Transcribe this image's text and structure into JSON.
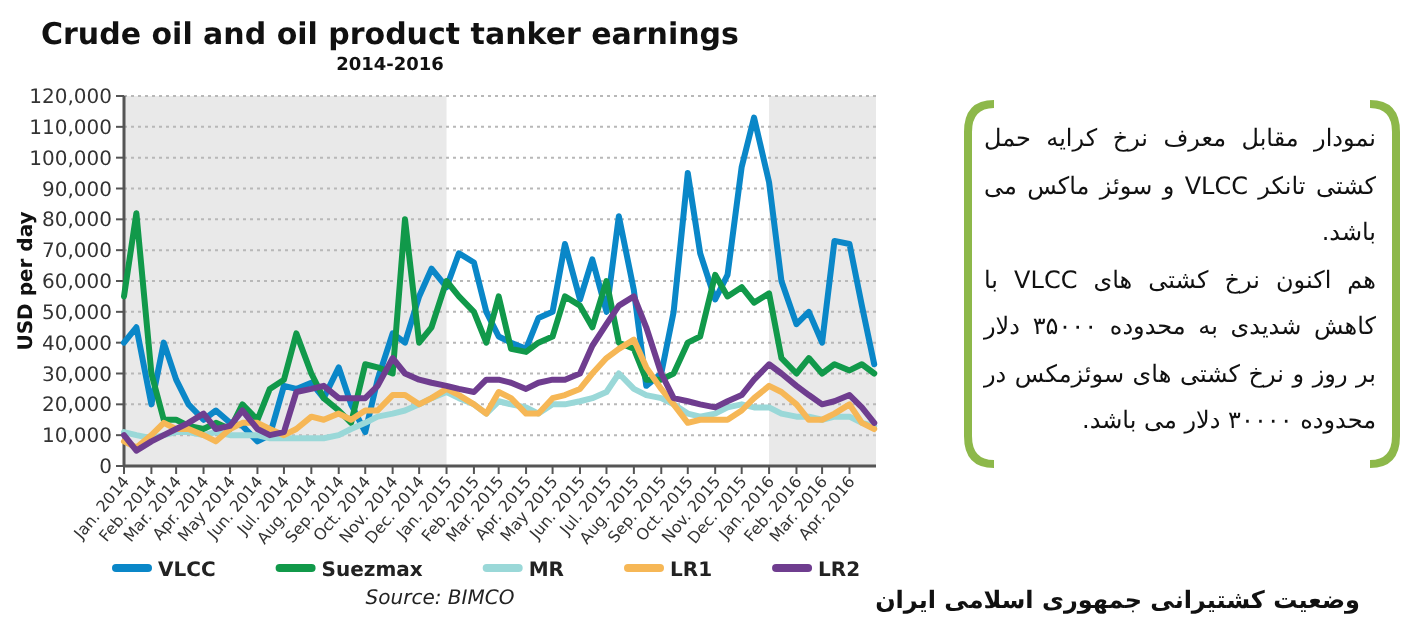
{
  "chart_data": {
    "type": "line",
    "title": "Crude oil and oil product tanker earnings",
    "subtitle": "2014-2016",
    "ylabel": "USD per day",
    "x": [
      "2014-01-01",
      "2014-01-15",
      "2014-02-01",
      "2014-02-15",
      "2014-03-01",
      "2014-03-15",
      "2014-04-01",
      "2014-04-15",
      "2014-05-01",
      "2014-05-15",
      "2014-06-01",
      "2014-06-15",
      "2014-07-01",
      "2014-07-15",
      "2014-08-01",
      "2014-08-15",
      "2014-09-01",
      "2014-09-15",
      "2014-10-01",
      "2014-10-15",
      "2014-11-01",
      "2014-11-15",
      "2014-12-01",
      "2014-12-15",
      "2015-01-01",
      "2015-01-15",
      "2015-02-01",
      "2015-02-15",
      "2015-03-01",
      "2015-03-15",
      "2015-04-01",
      "2015-04-15",
      "2015-05-01",
      "2015-05-15",
      "2015-06-01",
      "2015-06-15",
      "2015-07-01",
      "2015-07-15",
      "2015-08-01",
      "2015-08-15",
      "2015-09-01",
      "2015-09-15",
      "2015-10-01",
      "2015-10-15",
      "2015-11-01",
      "2015-11-15",
      "2015-12-01",
      "2015-12-15",
      "2016-01-01",
      "2016-01-15",
      "2016-02-01",
      "2016-02-15",
      "2016-03-01",
      "2016-03-15",
      "2016-04-01",
      "2016-04-15",
      "2016-04-29"
    ],
    "series": [
      {
        "name": "VLCC",
        "color": "#0a87c8",
        "values": [
          40000,
          45000,
          20000,
          40000,
          28000,
          20000,
          15000,
          18000,
          14000,
          13000,
          8000,
          10000,
          26000,
          25000,
          27000,
          22000,
          32000,
          20000,
          11000,
          28000,
          43000,
          40000,
          55000,
          64000,
          58000,
          69000,
          66000,
          50000,
          42000,
          40000,
          38000,
          48000,
          50000,
          72000,
          54000,
          67000,
          50000,
          81000,
          57000,
          26000,
          30000,
          50000,
          95000,
          69000,
          54000,
          62000,
          97000,
          113000,
          92000,
          60000,
          46000,
          50000,
          40000,
          73000,
          72000,
          52000,
          33000
        ]
      },
      {
        "name": "Suezmax",
        "color": "#11994a",
        "values": [
          55000,
          82000,
          30000,
          15000,
          15000,
          13000,
          12000,
          14000,
          12000,
          20000,
          15000,
          25000,
          28000,
          43000,
          30000,
          22000,
          18000,
          14000,
          33000,
          32000,
          30000,
          80000,
          40000,
          45000,
          60000,
          55000,
          50000,
          40000,
          55000,
          38000,
          37000,
          40000,
          42000,
          55000,
          52000,
          45000,
          60000,
          40000,
          38000,
          28000,
          28000,
          30000,
          40000,
          42000,
          62000,
          55000,
          58000,
          53000,
          56000,
          35000,
          30000,
          35000,
          30000,
          33000,
          31000,
          33000,
          30000
        ]
      },
      {
        "name": "MR",
        "color": "#9ad8d8",
        "values": [
          11000,
          10000,
          9000,
          10000,
          11000,
          11000,
          10000,
          11000,
          10000,
          10000,
          10000,
          9000,
          9000,
          9000,
          9000,
          9000,
          10000,
          12000,
          14000,
          16000,
          17000,
          18000,
          20000,
          22000,
          24000,
          22000,
          20000,
          17000,
          21000,
          20000,
          19000,
          17000,
          20000,
          20000,
          21000,
          22000,
          24000,
          30000,
          25000,
          23000,
          22000,
          20000,
          17000,
          16000,
          17000,
          19000,
          20000,
          19000,
          19000,
          17000,
          16000,
          16000,
          15000,
          16000,
          16000,
          14000,
          13000
        ]
      },
      {
        "name": "LR1",
        "color": "#f6b756",
        "values": [
          8000,
          6000,
          10000,
          14000,
          12000,
          12000,
          10000,
          8000,
          12000,
          14000,
          14000,
          12000,
          10000,
          12000,
          16000,
          15000,
          17000,
          15000,
          18000,
          18000,
          23000,
          23000,
          20000,
          22000,
          25000,
          23000,
          20000,
          17000,
          24000,
          22000,
          17000,
          17000,
          22000,
          23000,
          25000,
          30000,
          35000,
          38000,
          41000,
          32000,
          25000,
          20000,
          14000,
          15000,
          15000,
          15000,
          18000,
          22000,
          26000,
          24000,
          20000,
          15000,
          15000,
          17000,
          20000,
          14000,
          12000
        ]
      },
      {
        "name": "LR2",
        "color": "#6f3d8f",
        "values": [
          10000,
          5000,
          8000,
          10000,
          12000,
          14000,
          17000,
          12000,
          13000,
          18000,
          12000,
          10000,
          11000,
          24000,
          25000,
          26000,
          22000,
          22000,
          22000,
          26000,
          35000,
          30000,
          28000,
          27000,
          26000,
          25000,
          24000,
          28000,
          28000,
          27000,
          25000,
          27000,
          28000,
          28000,
          30000,
          39000,
          46000,
          52000,
          55000,
          45000,
          30000,
          22000,
          21000,
          20000,
          19000,
          21000,
          23000,
          28000,
          33000,
          30000,
          26000,
          23000,
          20000,
          21000,
          23000,
          19000,
          14000
        ]
      }
    ],
    "xlim": [
      "2014-01",
      "2016-05"
    ],
    "xticks": [
      {
        "value": "2014-01",
        "label": "Jan. 2014"
      },
      {
        "value": "2014-02",
        "label": "Feb. 2014"
      },
      {
        "value": "2014-03",
        "label": "Mar. 2014"
      },
      {
        "value": "2014-04",
        "label": "Apr. 2014"
      },
      {
        "value": "2014-05",
        "label": "May 2014"
      },
      {
        "value": "2014-06",
        "label": "Jun. 2014"
      },
      {
        "value": "2014-07",
        "label": "Jul. 2014"
      },
      {
        "value": "2014-08",
        "label": "Aug. 2014"
      },
      {
        "value": "2014-09",
        "label": "Sep. 2014"
      },
      {
        "value": "2014-10",
        "label": "Oct. 2014"
      },
      {
        "value": "2014-11",
        "label": "Nov. 2014"
      },
      {
        "value": "2014-12",
        "label": "Dec. 2014"
      },
      {
        "value": "2015-01",
        "label": "Jan. 2015"
      },
      {
        "value": "2015-02",
        "label": "Feb. 2015"
      },
      {
        "value": "2015-03",
        "label": "Mar. 2015"
      },
      {
        "value": "2015-04",
        "label": "Apr. 2015"
      },
      {
        "value": "2015-05",
        "label": "May 2015"
      },
      {
        "value": "2015-06",
        "label": "Jun. 2015"
      },
      {
        "value": "2015-07",
        "label": "Jul. 2015"
      },
      {
        "value": "2015-08",
        "label": "Aug. 2015"
      },
      {
        "value": "2015-09",
        "label": "Sep. 2015"
      },
      {
        "value": "2015-10",
        "label": "Oct. 2015"
      },
      {
        "value": "2015-11",
        "label": "Nov. 2015"
      },
      {
        "value": "2015-12",
        "label": "Dec. 2015"
      },
      {
        "value": "2016-01",
        "label": "Jan. 2016"
      },
      {
        "value": "2016-02",
        "label": "Feb. 2016"
      },
      {
        "value": "2016-03",
        "label": "Mar. 2016"
      },
      {
        "value": "2016-04",
        "label": "Apr. 2016"
      }
    ],
    "ylim": [
      0,
      120000
    ],
    "yticks": [
      0,
      {
        "value": 10000,
        "label": "10,000"
      },
      {
        "value": 20000,
        "label": "20,000"
      },
      {
        "value": 30000,
        "label": "30,000"
      },
      {
        "value": 40000,
        "label": "40,000"
      },
      {
        "value": 50000,
        "label": "50,000"
      },
      {
        "value": 60000,
        "label": "60,000"
      },
      {
        "value": 70000,
        "label": "70,000"
      },
      {
        "value": 80000,
        "label": "80,000"
      },
      {
        "value": 90000,
        "label": "90,000"
      },
      {
        "value": 100000,
        "label": "100,000"
      },
      {
        "value": 110000,
        "label": "110,000"
      },
      {
        "value": 120000,
        "label": "120,000"
      }
    ],
    "bands": [
      {
        "axis": "x",
        "from": "2014-01",
        "to": "2015-01",
        "color": "#e9e9e9"
      },
      {
        "axis": "x",
        "from": "2016-01",
        "to": "2016-05",
        "color": "#e9e9e9"
      }
    ],
    "grid": "y",
    "legend": "bottom",
    "annotations": [
      "نمودار مقابل معرف نرخ کرایه حمل کشتی تانکر VLCC و سوئز ماکس می باشد.",
      "هم اکنون نرخ کشتی های VLCC با کاهش شدیدی به محدوده ۳۵۰۰۰ دلار بر روز و نرخ کشتی های سوئزمکس در محدوده ۳۰۰۰۰ دلار می باشد.",
      "Source: BIMCO",
      "وضعیت کشتیرانی جمهوری اسلامی ایران"
    ]
  }
}
